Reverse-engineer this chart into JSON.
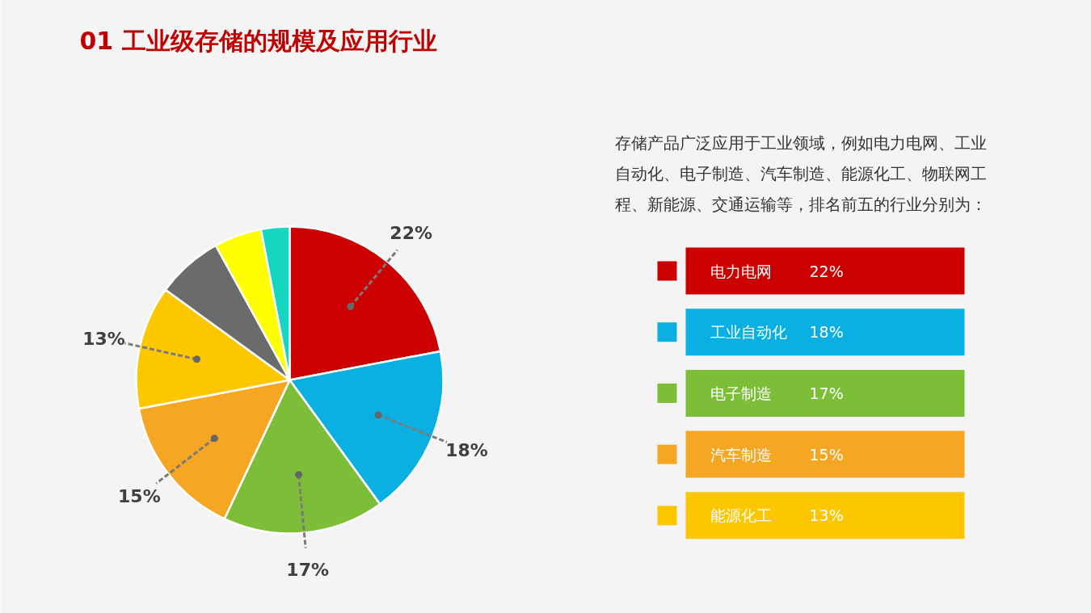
{
  "chart_data": {
    "type": "pie",
    "title": "01 工业级存储的规模及应用行业",
    "annotations": [
      "存储产品广泛应用于工业领域，例如电力电网、工业自动化、电子制造、汽车制造、能源化工、物联网工程、新能源、交通运输等，排名前五的行业分别为："
    ],
    "categories": [
      "电力电网",
      "工业自动化",
      "电子制造",
      "汽车制造",
      "能源化工",
      null,
      null,
      null
    ],
    "values": [
      22,
      18,
      17,
      15,
      13,
      7,
      5,
      3
    ],
    "colors": [
      "#cc0000",
      "#0bb0e3",
      "#7dbe39",
      "#f5a623",
      "#fdc700",
      "#6b6b6b",
      "#ffff00",
      "#15d6c1"
    ],
    "value_labels": [
      "22%",
      "18%",
      "17%",
      "15%",
      "13%",
      null,
      null,
      null
    ],
    "legend": "right"
  }
}
